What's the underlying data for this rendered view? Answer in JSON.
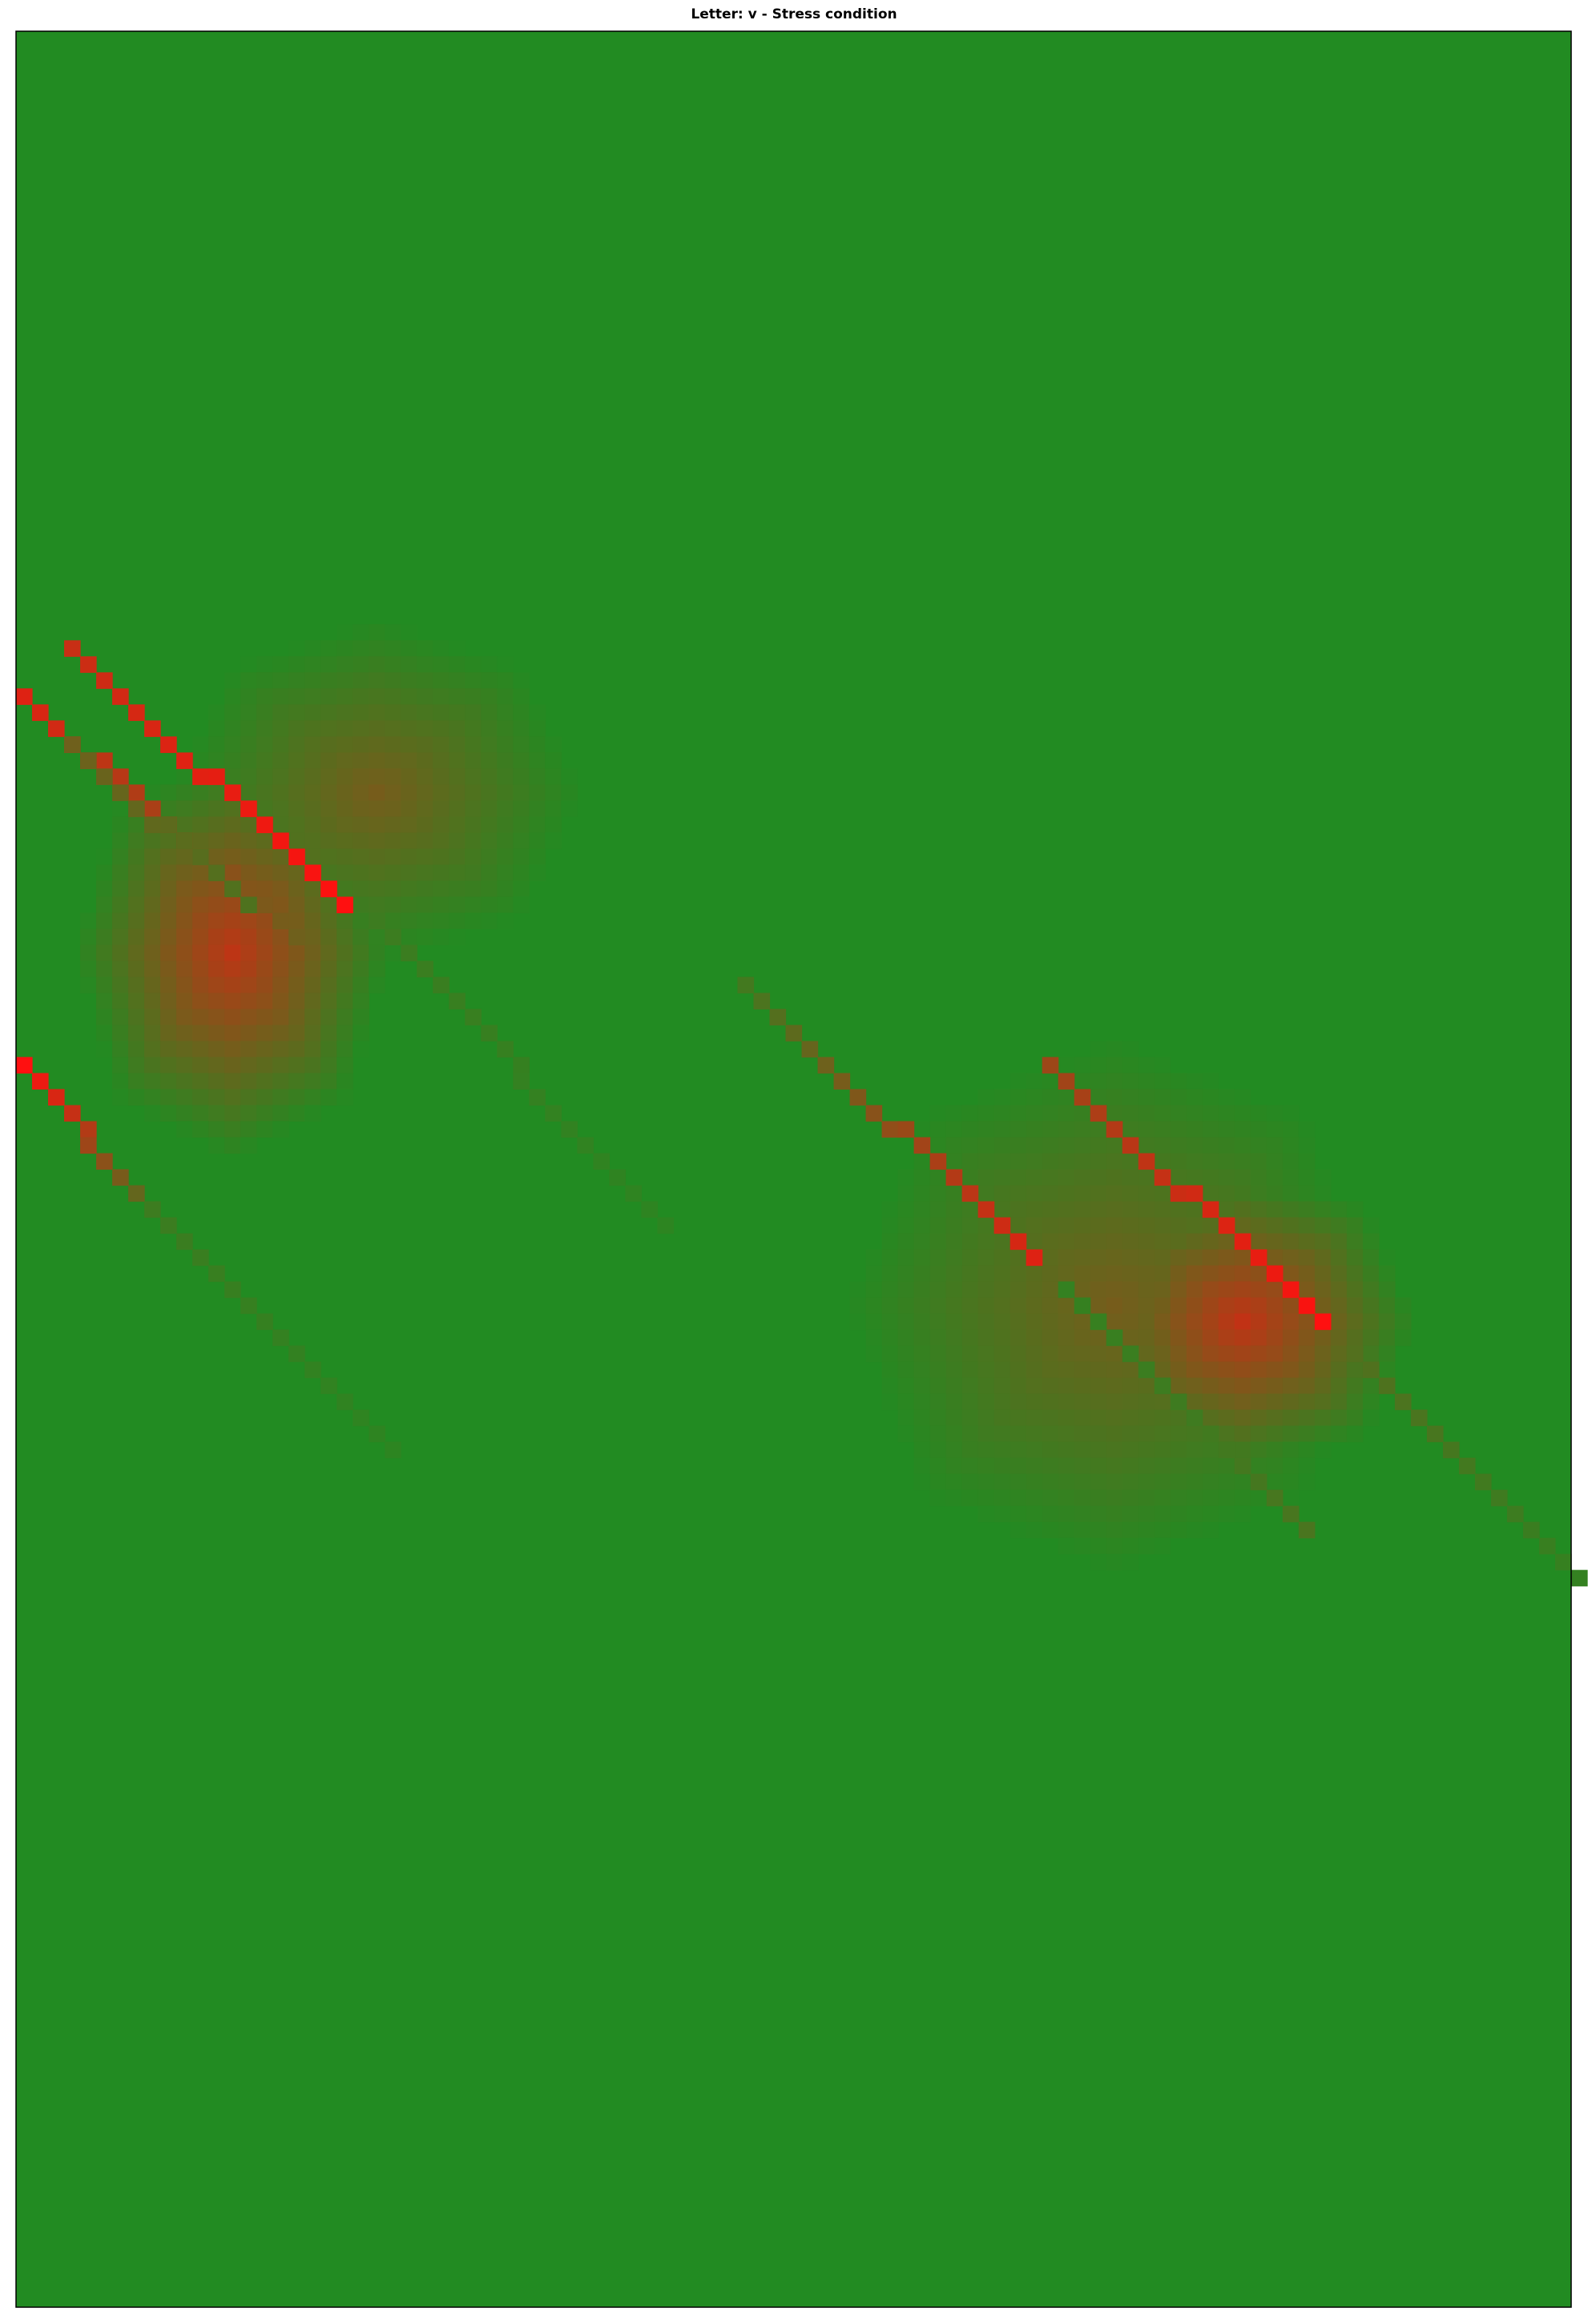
{
  "chart_data": {
    "type": "heatmap",
    "title": "Letter: v - Stress condition",
    "xlabel": "",
    "ylabel": "",
    "grid": false,
    "legend": "none",
    "axes_ticks": "none",
    "matrix_shape": [
      142,
      97
    ],
    "colors": {
      "low": "#228B22",
      "high": "#FF1010"
    },
    "scale": "intensity 0 (green) to 1 (red)",
    "hotspots": [
      {
        "name": "upper-left band core",
        "row": 57,
        "col": 13,
        "value": 0.7,
        "spread_rows": 13,
        "spread_cols": 10
      },
      {
        "name": "upper-left band outer",
        "row": 47,
        "col": 22,
        "value": 0.38,
        "spread_rows": 11,
        "spread_cols": 13
      },
      {
        "name": "right band core",
        "row": 80,
        "col": 76,
        "value": 0.72,
        "spread_rows": 10,
        "spread_cols": 11
      },
      {
        "name": "right band outer",
        "row": 79,
        "col": 68,
        "value": 0.38,
        "spread_rows": 17,
        "spread_cols": 17
      }
    ],
    "stroke_lines": [
      {
        "name": "stroke 1",
        "start": [
          38,
          3
        ],
        "end": [
          54,
          20
        ],
        "value_start": 0.75,
        "value_end": 1.0
      },
      {
        "name": "stroke 1 tail",
        "start": [
          55,
          22
        ],
        "end": [
          74,
          40
        ],
        "value_start": 0.12,
        "value_end": 0.05
      },
      {
        "name": "stroke 2",
        "start": [
          41,
          0
        ],
        "end": [
          56,
          17
        ],
        "value_start": 0.85,
        "value_end": 0.35
      },
      {
        "name": "stroke 2 tail",
        "start": [
          44,
          3
        ],
        "end": [
          54,
          14
        ],
        "value_start": 0.35,
        "value_end": 0.2
      },
      {
        "name": "stroke 3",
        "start": [
          64,
          0
        ],
        "end": [
          72,
          7
        ],
        "value_start": 1.0,
        "value_end": 0.3
      },
      {
        "name": "stroke 3 tail",
        "start": [
          73,
          8
        ],
        "end": [
          88,
          23
        ],
        "value_start": 0.12,
        "value_end": 0.05
      },
      {
        "name": "stroke 4",
        "start": [
          59,
          45
        ],
        "end": [
          76,
          63
        ],
        "value_start": 0.15,
        "value_end": 0.85
      },
      {
        "name": "stroke 5",
        "start": [
          64,
          64
        ],
        "end": [
          80,
          81
        ],
        "value_start": 0.55,
        "value_end": 1.0
      },
      {
        "name": "stroke 5 tail",
        "start": [
          82,
          83
        ],
        "end": [
          96,
          97
        ],
        "value_start": 0.22,
        "value_end": 0.08
      },
      {
        "name": "stroke 6",
        "start": [
          78,
          65
        ],
        "end": [
          93,
          80
        ],
        "value_start": 0.08,
        "value_end": 0.18
      }
    ]
  }
}
